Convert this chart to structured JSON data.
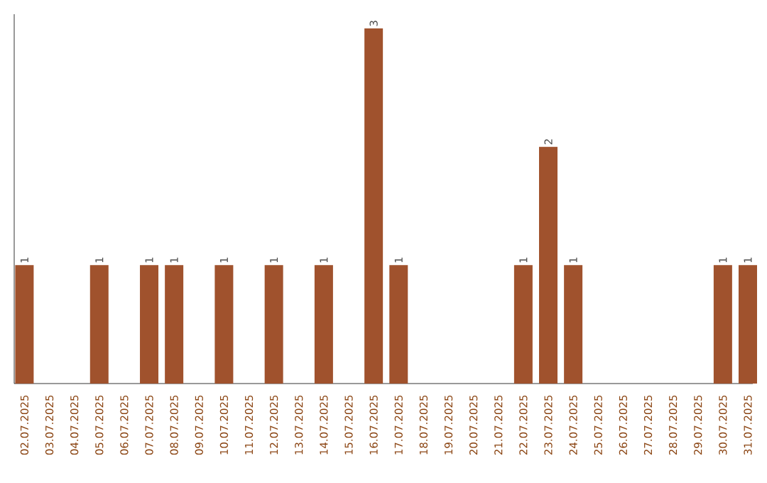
{
  "chart_data": {
    "type": "bar",
    "color": "#a0522d",
    "categories": [
      "02.07.2025",
      "03.07.2025",
      "04.07.2025",
      "05.07.2025",
      "06.07.2025",
      "07.07.2025",
      "08.07.2025",
      "09.07.2025",
      "10.07.2025",
      "11.07.2025",
      "12.07.2025",
      "13.07.2025",
      "14.07.2025",
      "15.07.2025",
      "16.07.2025",
      "17.07.2025",
      "18.07.2025",
      "19.07.2025",
      "20.07.2025",
      "21.07.2025",
      "22.07.2025",
      "23.07.2025",
      "24.07.2025",
      "25.07.2025",
      "26.07.2025",
      "27.07.2025",
      "28.07.2025",
      "29.07.2025",
      "30.07.2025",
      "31.07.2025"
    ],
    "values": [
      1,
      0,
      0,
      1,
      0,
      1,
      1,
      0,
      1,
      0,
      1,
      0,
      1,
      0,
      3,
      1,
      0,
      0,
      0,
      0,
      1,
      2,
      1,
      0,
      0,
      0,
      0,
      0,
      1,
      1
    ],
    "value_labels": [
      "1",
      null,
      null,
      "1",
      null,
      "1",
      "1",
      null,
      "1",
      null,
      "1",
      null,
      "1",
      null,
      "3",
      "1",
      null,
      null,
      null,
      null,
      "1",
      "2",
      "1",
      null,
      null,
      null,
      null,
      null,
      "1",
      "1"
    ],
    "grid": false
  }
}
